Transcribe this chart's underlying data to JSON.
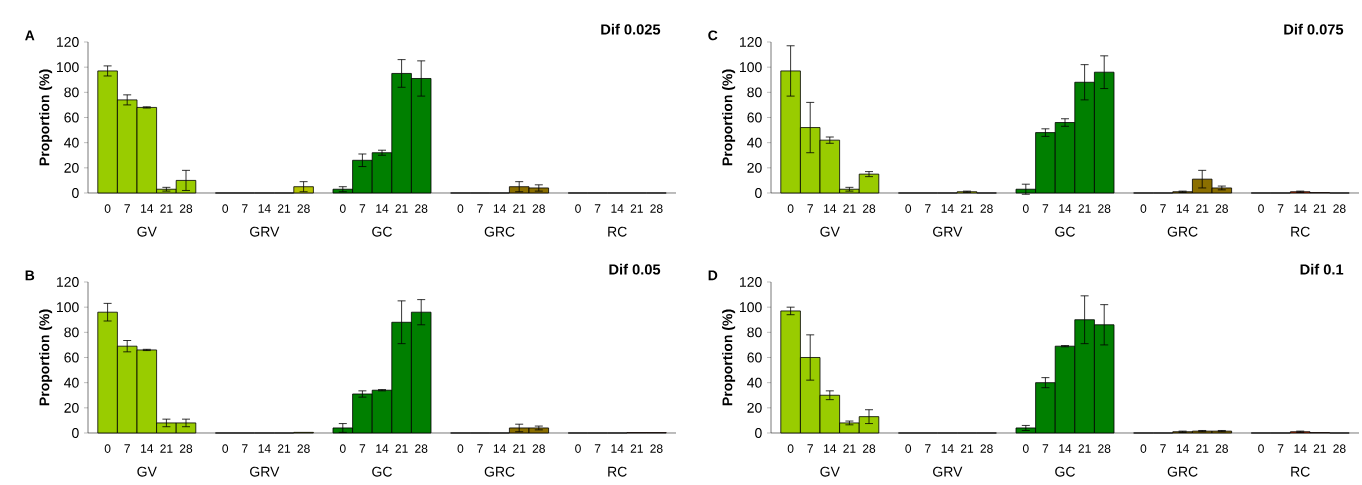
{
  "chart_data": [
    {
      "type": "bar",
      "title": "Dif 0.025",
      "ylabel": "Proportion (%)",
      "ylim": [
        0,
        120
      ],
      "yticks": [
        0,
        20,
        40,
        60,
        80,
        100,
        120
      ],
      "categories": [
        "0",
        "7",
        "14",
        "21",
        "28",
        "0",
        "7",
        "14",
        "21",
        "28",
        "0",
        "7",
        "14",
        "21",
        "28",
        "0",
        "7",
        "14",
        "21",
        "28",
        "0",
        "7",
        "14",
        "21",
        "28"
      ],
      "values": [
        97,
        74,
        68,
        3,
        10,
        0,
        0,
        0,
        0,
        5,
        3,
        26,
        32,
        95,
        91,
        0,
        0,
        0,
        5,
        4,
        0,
        0,
        0,
        0,
        0
      ],
      "errors": [
        4,
        4,
        0.5,
        1.5,
        8,
        null,
        null,
        null,
        null,
        4,
        2,
        5,
        2,
        11,
        14,
        null,
        null,
        null,
        4,
        2.5,
        null,
        null,
        null,
        null,
        null
      ],
      "colors": [
        "#99cc00",
        "#99cc00",
        "#99cc00",
        "#99cc00",
        "#99cc00",
        "#b5c400",
        "#b5c400",
        "#b5c400",
        "#b5c400",
        "#b5c400",
        "#007f00",
        "#007f00",
        "#007f00",
        "#007f00",
        "#007f00",
        "#8b6f00",
        "#8b6f00",
        "#8b6f00",
        "#8b6f00",
        "#8b6f00",
        "#cc3300",
        "#cc3300",
        "#cc3300",
        "#cc3300",
        "#cc3300"
      ],
      "annotations": [
        "A",
        "GV",
        "GRV",
        "GC",
        "GRC",
        "RC"
      ]
    },
    {
      "type": "bar",
      "title": "Dif 0.075",
      "ylabel": "Proportion (%)",
      "ylim": [
        0,
        120
      ],
      "yticks": [
        0,
        20,
        40,
        60,
        80,
        100,
        120
      ],
      "categories": [
        "0",
        "7",
        "14",
        "21",
        "28",
        "0",
        "7",
        "14",
        "21",
        "28",
        "0",
        "7",
        "14",
        "21",
        "28",
        "0",
        "7",
        "14",
        "21",
        "28",
        "0",
        "7",
        "14",
        "21",
        "28"
      ],
      "values": [
        97,
        52,
        42,
        3,
        15,
        0,
        0,
        0,
        1,
        0,
        3,
        48,
        56,
        88,
        96,
        0,
        0,
        1,
        11,
        4,
        0,
        0,
        1,
        0.3,
        0
      ],
      "errors": [
        20,
        20,
        2.5,
        1.5,
        2,
        null,
        null,
        null,
        0.5,
        null,
        4,
        3,
        3,
        14,
        13,
        null,
        null,
        0.5,
        7,
        1.5,
        null,
        null,
        0.5,
        null,
        null
      ],
      "colors": [
        "#99cc00",
        "#99cc00",
        "#99cc00",
        "#99cc00",
        "#99cc00",
        "#b5c400",
        "#b5c400",
        "#b5c400",
        "#b5c400",
        "#b5c400",
        "#007f00",
        "#007f00",
        "#007f00",
        "#007f00",
        "#007f00",
        "#8b6f00",
        "#8b6f00",
        "#8b6f00",
        "#8b6f00",
        "#8b6f00",
        "#cc3300",
        "#cc3300",
        "#cc3300",
        "#cc3300",
        "#cc3300"
      ],
      "annotations": [
        "C",
        "GV",
        "GRV",
        "GC",
        "GRC",
        "RC"
      ]
    },
    {
      "type": "bar",
      "title": "Dif 0.05",
      "ylabel": "Proportion (%)",
      "ylim": [
        0,
        120
      ],
      "yticks": [
        0,
        20,
        40,
        60,
        80,
        100,
        120
      ],
      "categories": [
        "0",
        "7",
        "14",
        "21",
        "28",
        "0",
        "7",
        "14",
        "21",
        "28",
        "0",
        "7",
        "14",
        "21",
        "28",
        "0",
        "7",
        "14",
        "21",
        "28",
        "0",
        "7",
        "14",
        "21",
        "28"
      ],
      "values": [
        96,
        69,
        66,
        8,
        8,
        0,
        0,
        0,
        0,
        0.5,
        4,
        31,
        34,
        88,
        96,
        0,
        0,
        0,
        4,
        4,
        0,
        0,
        0,
        0.3,
        0.3
      ],
      "errors": [
        7,
        4.5,
        0.5,
        3,
        3,
        null,
        null,
        null,
        null,
        null,
        3.5,
        2.5,
        0.5,
        17,
        10,
        null,
        null,
        null,
        3,
        1.5,
        null,
        null,
        null,
        null,
        null
      ],
      "colors": [
        "#99cc00",
        "#99cc00",
        "#99cc00",
        "#99cc00",
        "#99cc00",
        "#b5c400",
        "#b5c400",
        "#b5c400",
        "#b5c400",
        "#b5c400",
        "#007f00",
        "#007f00",
        "#007f00",
        "#007f00",
        "#007f00",
        "#8b6f00",
        "#8b6f00",
        "#8b6f00",
        "#8b6f00",
        "#8b6f00",
        "#cc3300",
        "#cc3300",
        "#cc3300",
        "#cc3300",
        "#cc3300"
      ],
      "annotations": [
        "B",
        "GV",
        "GRV",
        "GC",
        "GRC",
        "RC"
      ]
    },
    {
      "type": "bar",
      "title": "Dif 0.1",
      "ylabel": "Proportion (%)",
      "ylim": [
        0,
        120
      ],
      "yticks": [
        0,
        20,
        40,
        60,
        80,
        100,
        120
      ],
      "categories": [
        "0",
        "7",
        "14",
        "21",
        "28",
        "0",
        "7",
        "14",
        "21",
        "28",
        "0",
        "7",
        "14",
        "21",
        "28",
        "0",
        "7",
        "14",
        "21",
        "28",
        "0",
        "7",
        "14",
        "21",
        "28"
      ],
      "values": [
        97,
        60,
        30,
        8,
        13,
        0,
        0,
        0,
        0,
        0,
        4,
        40,
        69,
        90,
        86,
        0,
        0,
        1,
        1.5,
        1.5,
        0,
        0,
        1,
        0.3,
        0
      ],
      "errors": [
        3,
        18,
        3.5,
        1.5,
        5.5,
        null,
        null,
        null,
        null,
        null,
        2,
        4,
        0.5,
        19,
        16,
        null,
        null,
        0.5,
        0.5,
        0.5,
        null,
        null,
        0.5,
        null,
        null
      ],
      "colors": [
        "#99cc00",
        "#99cc00",
        "#99cc00",
        "#99cc00",
        "#99cc00",
        "#b5c400",
        "#b5c400",
        "#b5c400",
        "#b5c400",
        "#b5c400",
        "#007f00",
        "#007f00",
        "#007f00",
        "#007f00",
        "#007f00",
        "#8b6f00",
        "#8b6f00",
        "#8b6f00",
        "#8b6f00",
        "#8b6f00",
        "#cc3300",
        "#cc3300",
        "#cc3300",
        "#cc3300",
        "#cc3300"
      ],
      "annotations": [
        "D",
        "GV",
        "GRV",
        "GC",
        "GRC",
        "RC"
      ]
    }
  ]
}
